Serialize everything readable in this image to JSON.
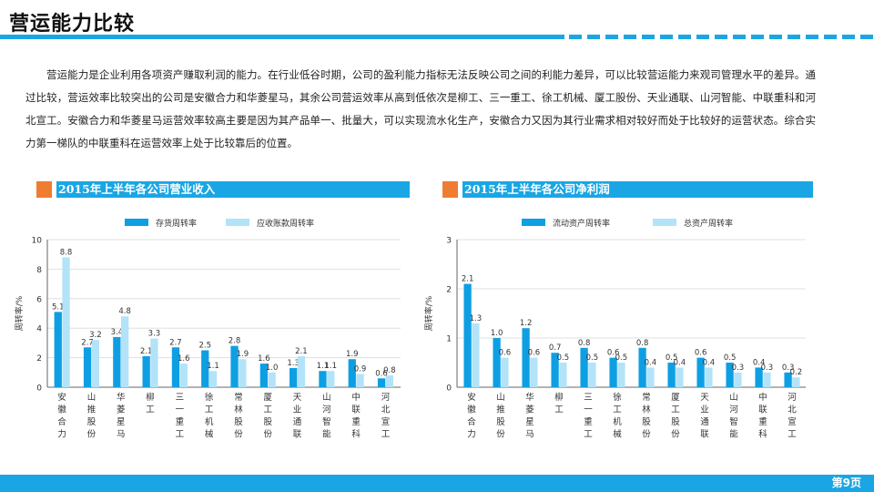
{
  "title": "营运能力比较",
  "paragraph": "营运能力是企业利用各项资产赚取利润的能力。在行业低谷时期，公司的盈利能力指标无法反映公司之间的利能力差异，可以比较营运能力来观司管理水平的差异。通过比较，营运效率比较突出的公司是安徽合力和华菱星马，其余公司营运效率从高到低依次是柳工、三一重工、徐工机械、厦工股份、天业通联、山河智能、中联重科和河北宣工。安徽合力和华菱星马运营效率较高主要是因为其产品单一、批量大，可以实现流水化生产，安徽合力又因为其行业需求相对较好而处于比较好的运营状态。综合实力第一梯队的中联重科在运营效率上处于比较靠后的位置。",
  "section_left": "2015年上半年各公司营业收入",
  "section_right": "2015年上半年各公司净利润",
  "page_number": "第9页",
  "colors": {
    "accent": "#1aa6e4",
    "orange": "#ef7d31",
    "dark_series": "#0e9fe3",
    "light_series": "#b3e3f8"
  },
  "chart_data": [
    {
      "type": "bar",
      "categories": [
        "安徽合力",
        "山推股份",
        "华菱星马",
        "柳工",
        "三一重工",
        "徐工机械",
        "常林股份",
        "厦工股份",
        "天业通联",
        "山河智能",
        "中联重科",
        "河北宣工"
      ],
      "series": [
        {
          "name": "存货周转率",
          "values": [
            5.1,
            2.7,
            3.4,
            2.1,
            2.7,
            2.5,
            2.8,
            1.6,
            1.3,
            1.1,
            1.9,
            0.6
          ]
        },
        {
          "name": "应收账款周转率",
          "values": [
            8.8,
            3.2,
            4.8,
            3.3,
            1.6,
            1.1,
            1.9,
            1.0,
            2.1,
            1.1,
            0.9,
            0.8
          ]
        }
      ],
      "ylabel": "周转率/%",
      "ylim": [
        0,
        10
      ],
      "yticks": [
        0,
        2,
        4,
        6,
        8,
        10
      ],
      "grid": true,
      "legend": "top"
    },
    {
      "type": "bar",
      "categories": [
        "安徽合力",
        "山推股份",
        "华菱星马",
        "柳工",
        "三一重工",
        "徐工机械",
        "常林股份",
        "厦工股份",
        "天业通联",
        "山河智能",
        "中联重科",
        "河北宣工"
      ],
      "series": [
        {
          "name": "流动资产周转率",
          "values": [
            2.1,
            1.0,
            1.2,
            0.7,
            0.8,
            0.6,
            0.8,
            0.5,
            0.6,
            0.5,
            0.4,
            0.3
          ]
        },
        {
          "name": "总资产周转率",
          "values": [
            1.3,
            0.6,
            0.6,
            0.5,
            0.5,
            0.5,
            0.4,
            0.4,
            0.4,
            0.3,
            0.3,
            0.2
          ]
        }
      ],
      "ylabel": "周转率/%",
      "ylim": [
        0,
        3
      ],
      "yticks": [
        0,
        1,
        2,
        3
      ],
      "grid": true,
      "legend": "top"
    }
  ]
}
